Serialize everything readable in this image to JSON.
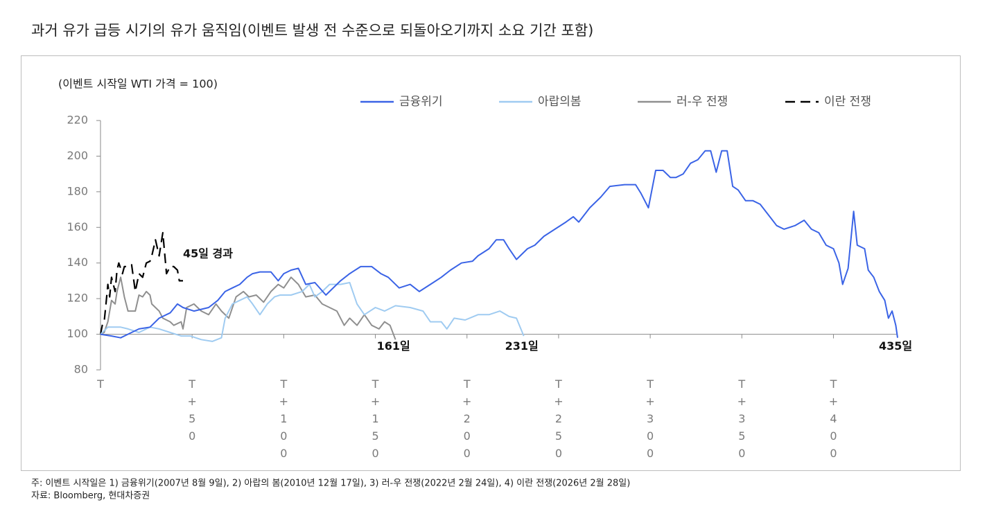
{
  "chart_data": {
    "type": "line",
    "title": "과거 유가 급등 시기의 유가 움직임(이벤트 발생 전 수준으로 되돌아오기까지 소요 기간 포함)",
    "y_axis_label": "(이벤트 시작일 WTI 가격 = 100)",
    "xlim": [
      0,
      435
    ],
    "xticks": [
      {
        "value": 0,
        "label": "T"
      },
      {
        "value": 50,
        "label": "T+50"
      },
      {
        "value": 100,
        "label": "T+100"
      },
      {
        "value": 150,
        "label": "T+150"
      },
      {
        "value": 200,
        "label": "T+200"
      },
      {
        "value": 250,
        "label": "T+250"
      },
      {
        "value": 300,
        "label": "T+300"
      },
      {
        "value": 350,
        "label": "T+350"
      },
      {
        "value": 400,
        "label": "T+400"
      }
    ],
    "ylim": [
      80,
      220
    ],
    "yticks": [
      80,
      100,
      120,
      140,
      160,
      180,
      200,
      220
    ],
    "baseline": 100,
    "series": [
      {
        "name": "금융위기",
        "color": "#3a63e6",
        "dashed": false,
        "x": [
          0,
          6,
          11,
          17,
          21,
          27,
          32,
          38,
          42,
          45,
          51,
          59,
          64,
          68,
          72,
          76,
          80,
          83,
          87,
          93,
          97,
          100,
          104,
          108,
          112,
          117,
          123,
          131,
          136,
          142,
          148,
          153,
          157,
          163,
          169,
          174,
          180,
          186,
          191,
          197,
          203,
          206,
          212,
          216,
          220,
          223,
          227,
          233,
          237,
          242,
          248,
          254,
          258,
          261,
          267,
          273,
          278,
          286,
          292,
          295,
          299,
          303,
          307,
          311,
          314,
          318,
          322,
          326,
          330,
          333,
          336,
          339,
          342,
          345,
          348,
          352,
          356,
          360,
          366,
          369,
          373,
          379,
          384,
          388,
          392,
          396,
          400,
          403,
          405,
          408,
          411,
          413,
          417,
          419,
          422,
          425,
          428,
          430,
          432,
          434,
          435
        ],
        "values": [
          100,
          99,
          98,
          101,
          103,
          104,
          109,
          112,
          117,
          115,
          113,
          115,
          119,
          124,
          126,
          128,
          132,
          134,
          135,
          135,
          130,
          134,
          136,
          137,
          128,
          129,
          122,
          130,
          134,
          138,
          138,
          134,
          132,
          126,
          128,
          124,
          128,
          132,
          136,
          140,
          141,
          144,
          148,
          153,
          153,
          148,
          142,
          148,
          150,
          155,
          159,
          163,
          166,
          163,
          171,
          177,
          183,
          184,
          184,
          179,
          171,
          192,
          192,
          188,
          188,
          190,
          196,
          198,
          203,
          203,
          191,
          203,
          203,
          183,
          181,
          175,
          175,
          173,
          165,
          161,
          159,
          161,
          164,
          159,
          157,
          150,
          148,
          140,
          128,
          137,
          169,
          150,
          148,
          136,
          132,
          124,
          119,
          109,
          113,
          105,
          98
        ]
      },
      {
        "name": "아랍의봄",
        "color": "#9fcbf1",
        "dashed": false,
        "x": [
          0,
          4,
          11,
          15,
          21,
          27,
          32,
          38,
          44,
          49,
          55,
          61,
          66,
          68,
          72,
          76,
          80,
          83,
          87,
          91,
          95,
          98,
          104,
          110,
          114,
          117,
          121,
          125,
          131,
          136,
          140,
          144,
          150,
          155,
          161,
          169,
          176,
          180,
          186,
          189,
          193,
          199,
          206,
          212,
          218,
          223,
          227,
          231
        ],
        "values": [
          100,
          104,
          104,
          103,
          101,
          104,
          103,
          101,
          99,
          99,
          97,
          96,
          98,
          109,
          117,
          119,
          121,
          117,
          111,
          117,
          121,
          122,
          122,
          124,
          128,
          121,
          124,
          128,
          128,
          129,
          117,
          111,
          115,
          113,
          116,
          115,
          113,
          107,
          107,
          103,
          109,
          108,
          111,
          111,
          113,
          110,
          109,
          99
        ]
      },
      {
        "name": "러-우 전쟁",
        "color": "#8f8f8f",
        "dashed": false,
        "x": [
          0,
          2,
          4,
          6,
          8,
          9,
          11,
          13,
          15,
          19,
          21,
          23,
          25,
          27,
          28,
          32,
          34,
          38,
          40,
          44,
          45,
          47,
          51,
          55,
          59,
          63,
          66,
          70,
          74,
          78,
          81,
          85,
          89,
          93,
          97,
          100,
          104,
          108,
          112,
          117,
          121,
          125,
          129,
          133,
          136,
          140,
          144,
          148,
          152,
          155,
          158,
          161
        ],
        "values": [
          100,
          101,
          107,
          119,
          117,
          124,
          132,
          121,
          113,
          113,
          122,
          121,
          124,
          122,
          117,
          113,
          109,
          107,
          105,
          107,
          103,
          115,
          117,
          113,
          111,
          117,
          113,
          109,
          121,
          124,
          121,
          122,
          118,
          124,
          128,
          126,
          132,
          128,
          121,
          122,
          117,
          115,
          113,
          105,
          109,
          105,
          111,
          105,
          103,
          107,
          105,
          97
        ]
      },
      {
        "name": "이란 전쟁",
        "color": "#000000",
        "dashed": true,
        "x": [
          0,
          1,
          2,
          3,
          4,
          5,
          6,
          8,
          9,
          10,
          12,
          13,
          15,
          17,
          19,
          21,
          23,
          25,
          27,
          28,
          30,
          32,
          34,
          36,
          38,
          40,
          42,
          43,
          45
        ],
        "values": [
          100,
          105,
          107,
          117,
          128,
          121,
          132,
          124,
          136,
          140,
          134,
          138,
          138,
          139,
          124,
          134,
          132,
          140,
          141,
          144,
          153,
          144,
          157,
          134,
          138,
          138,
          136,
          130,
          130
        ]
      }
    ],
    "annotations": [
      {
        "text": "45일 경과",
        "x": 45,
        "y": 145
      },
      {
        "text": "161일",
        "x": 161,
        "y": 93
      },
      {
        "text": "231일",
        "x": 231,
        "y": 93
      },
      {
        "text": "435일",
        "x": 435,
        "y": 93
      }
    ]
  },
  "notes": [
    "주: 이벤트 시작일은 1) 금융위기(2007년 8월 9일), 2) 아랍의 봄(2010년 12월 17일), 3) 러-우 전쟁(2022년 2월 24일), 4) 이란 전쟁(2026년 2월 28일)",
    "자료: Bloomberg, 현대차증권"
  ]
}
